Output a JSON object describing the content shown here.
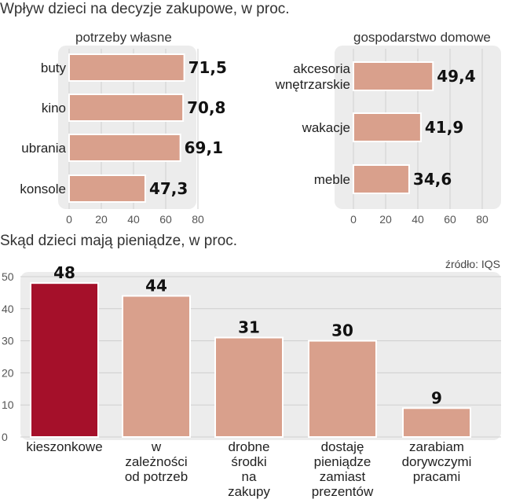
{
  "header": {
    "title1": "Wpływ dzieci na decyzje zakupowe, w proc.",
    "title2": "Skąd dzieci mają pieniądze, w proc.",
    "source": "źródło: IQS"
  },
  "colors": {
    "bar": "#d9a08c",
    "bar_outline": "#ffffff",
    "highlight": "#a5102a",
    "panel_bg": "#ececec",
    "grid": "#cfcfcf"
  },
  "chart_data": [
    {
      "type": "bar",
      "orientation": "horizontal",
      "title": "potrzeby własne",
      "categories": [
        "buty",
        "kino",
        "ubrania",
        "konsole"
      ],
      "values": [
        71.5,
        70.8,
        69.1,
        47.3
      ],
      "value_labels": [
        "71,5",
        "70,8",
        "69,1",
        "47,3"
      ],
      "xlim": [
        0,
        80
      ],
      "xticks": [
        0,
        20,
        40,
        60,
        80
      ],
      "grid": true
    },
    {
      "type": "bar",
      "orientation": "horizontal",
      "title": "gospodarstwo domowe",
      "categories": [
        "akcesoria\nwnętrzarskie",
        "wakacje",
        "meble"
      ],
      "values": [
        49.4,
        41.9,
        34.6
      ],
      "value_labels": [
        "49,4",
        "41,9",
        "34,6"
      ],
      "xlim": [
        0,
        80
      ],
      "xticks": [
        0,
        20,
        40,
        60,
        80
      ],
      "grid": true
    },
    {
      "type": "bar",
      "orientation": "vertical",
      "title": "Skąd dzieci mają pieniądze, w proc.",
      "categories": [
        "kieszonkowe",
        "w\nzależności\nod potrzeb",
        "drobne\nśrodki\nna\nzakupy",
        "dostaję\npieniądze\nzamiast\nprezentów",
        "zarabiam\ndorywczymi\npracami"
      ],
      "values": [
        48,
        44,
        31,
        30,
        9
      ],
      "value_labels": [
        "48",
        "44",
        "31",
        "30",
        "9"
      ],
      "highlight_index": 0,
      "ylim": [
        0,
        50
      ],
      "yticks": [
        0,
        10,
        20,
        30,
        40,
        50
      ],
      "grid": true
    }
  ]
}
